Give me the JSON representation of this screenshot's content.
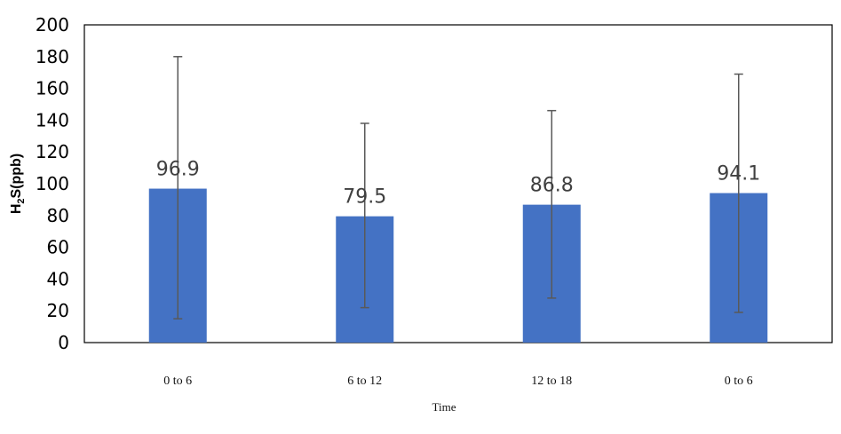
{
  "chart_data": {
    "type": "bar",
    "title": "",
    "xlabel": "Time",
    "ylabel": {
      "base": "H",
      "subscript": "2",
      "rest": "S(ppb)"
    },
    "categories": [
      "0 to 6",
      "6 to 12",
      "12 to 18",
      "0 to 6"
    ],
    "values": [
      96.9,
      79.5,
      86.8,
      94.1
    ],
    "data_labels": [
      "96.9",
      "79.5",
      "86.8",
      "94.1"
    ],
    "error_bars": [
      {
        "low": 15,
        "high": 180
      },
      {
        "low": 22,
        "high": 138
      },
      {
        "low": 28,
        "high": 146
      },
      {
        "low": 19,
        "high": 169
      }
    ],
    "ylim": [
      0,
      200
    ],
    "yticks": [
      0,
      20,
      40,
      60,
      80,
      100,
      120,
      140,
      160,
      180,
      200
    ],
    "grid": false,
    "legend": "none",
    "colors": {
      "bar": "#4472C4",
      "error_bar": "#595959",
      "frame": "#000000",
      "data_label": "#404040"
    }
  }
}
